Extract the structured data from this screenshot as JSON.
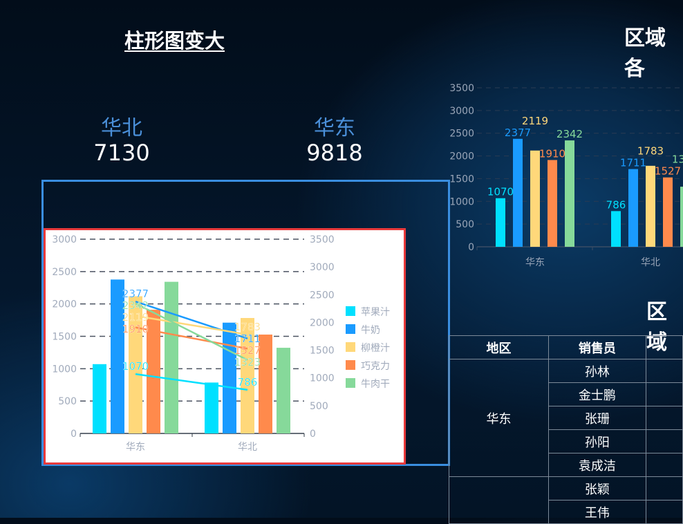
{
  "left_panel": {
    "title": "柱形图变大",
    "regions": [
      {
        "name": "华北",
        "value": "7130"
      },
      {
        "name": "华东",
        "value": "9818"
      }
    ]
  },
  "colors": {
    "apple": "#00e0ff",
    "milk": "#1a9bff",
    "orange": "#ffd87a",
    "choco": "#ff8a4c",
    "jerky": "#86d99a",
    "frame": "#3a8ee0",
    "chart_border": "#e8393a"
  },
  "chart_data": [
    {
      "type": "bar",
      "title": "",
      "categories": [
        "华东",
        "华北"
      ],
      "series": [
        {
          "name": "苹果汁",
          "values": [
            1070,
            786
          ]
        },
        {
          "name": "牛奶",
          "values": [
            2377,
            1711
          ]
        },
        {
          "name": "柳橙汁",
          "values": [
            2119,
            1783
          ]
        },
        {
          "name": "巧克力",
          "values": [
            1910,
            1527
          ]
        },
        {
          "name": "牛肉干",
          "values": [
            2342,
            1323
          ]
        }
      ],
      "ylim": [
        0,
        3000
      ],
      "y2lim": [
        0,
        3500
      ],
      "yticks": [
        "0",
        "500",
        "1000",
        "1500",
        "2000",
        "2500",
        "3000"
      ],
      "y2ticks": [
        "0",
        "500",
        "1000",
        "1500",
        "2000",
        "2500",
        "3000",
        "3500"
      ],
      "lines_on_secondary_axis": true,
      "legend": "right",
      "grid": true
    },
    {
      "type": "bar",
      "title": "区域各",
      "categories": [
        "华东",
        "华北"
      ],
      "series": [
        {
          "name": "苹果汁",
          "values": [
            1070,
            786
          ]
        },
        {
          "name": "牛奶",
          "values": [
            2377,
            1711
          ]
        },
        {
          "name": "柳橙汁",
          "values": [
            2119,
            1783
          ]
        },
        {
          "name": "巧克力",
          "values": [
            1910,
            1527
          ]
        },
        {
          "name": "牛肉干",
          "values": [
            2342,
            1323
          ]
        }
      ],
      "ylim": [
        0,
        3500
      ],
      "yticks": [
        "0",
        "500",
        "1000",
        "1500",
        "2000",
        "2500",
        "3000",
        "3500"
      ],
      "grid": true
    }
  ],
  "table": {
    "title": "区域",
    "headers": [
      "地区",
      "销售员",
      ""
    ],
    "groups": [
      {
        "region": "华东",
        "people": [
          "孙林",
          "金士鹏",
          "张珊",
          "孙阳",
          "袁成洁"
        ]
      },
      {
        "region": "",
        "people": [
          "张颖",
          "王伟"
        ]
      }
    ]
  }
}
